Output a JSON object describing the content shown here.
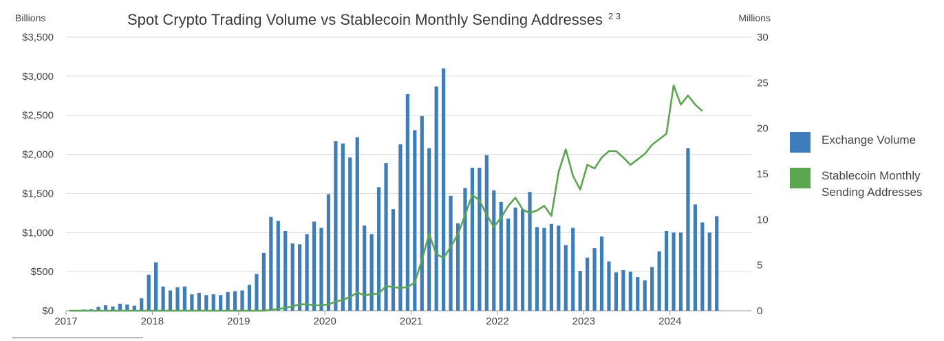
{
  "chart_data": {
    "type": "bar+line",
    "title": "Spot Crypto Trading Volume vs Stablecoin Monthly Sending Addresses",
    "title_superscript": "2 3",
    "left_axis_unit": "Billions",
    "right_axis_unit": "Millions",
    "y_left": {
      "min": 0,
      "max": 3500,
      "ticks": [
        "$0",
        "$500",
        "$1,000",
        "$1,500",
        "$2,000",
        "$2,500",
        "$3,000",
        "$3,500"
      ]
    },
    "y_right": {
      "min": 0,
      "max": 30,
      "ticks": [
        "0",
        "5",
        "10",
        "15",
        "20",
        "25",
        "30"
      ]
    },
    "x_ticks": [
      "2017",
      "2018",
      "2019",
      "2020",
      "2021",
      "2022",
      "2023",
      "2024"
    ],
    "x_start": "2017-01",
    "series": [
      {
        "name": "Exchange Volume",
        "kind": "bar",
        "axis": "left",
        "color": "#3d7dbb",
        "values": [
          5,
          8,
          15,
          20,
          50,
          70,
          55,
          90,
          80,
          65,
          160,
          460,
          620,
          310,
          260,
          300,
          310,
          210,
          230,
          200,
          210,
          200,
          240,
          250,
          260,
          330,
          470,
          740,
          1200,
          1150,
          1020,
          860,
          850,
          980,
          1140,
          1060,
          1490,
          2170,
          2140,
          1960,
          2220,
          1090,
          980,
          1580,
          1890,
          1300,
          2130,
          2770,
          2310,
          2490,
          2080,
          2870,
          3100,
          1470,
          1120,
          1570,
          1830,
          1830,
          1990,
          1540,
          1390,
          1180,
          1320,
          1300,
          1520,
          1070,
          1060,
          1110,
          1090,
          840,
          1060,
          510,
          680,
          800,
          950,
          630,
          490,
          520,
          500,
          430,
          390,
          560,
          760,
          1020,
          1000,
          1000,
          2080,
          1360,
          1130,
          1000,
          1210
        ]
      },
      {
        "name": "Stablecoin Monthly Sending Addresses",
        "kind": "line",
        "axis": "right",
        "color": "#5aa64e",
        "values": [
          0,
          0,
          0,
          0,
          0,
          0,
          0,
          0,
          0,
          0,
          0,
          0,
          0,
          0,
          0,
          0,
          0,
          0,
          0,
          0,
          0,
          0,
          0,
          0,
          0,
          0,
          0,
          0,
          0.1,
          0.2,
          0.3,
          0.5,
          0.7,
          0.7,
          0.6,
          0.6,
          0.7,
          1.0,
          1.2,
          1.5,
          2.0,
          1.7,
          1.8,
          1.9,
          2.7,
          2.6,
          2.5,
          2.6,
          3.1,
          5.6,
          8.4,
          6.2,
          5.8,
          7.0,
          8.4,
          10.5,
          12.7,
          12.1,
          10.5,
          9.2,
          10.2,
          11.5,
          12.4,
          11.1,
          10.7,
          11.0,
          11.5,
          10.4,
          15.2,
          17.7,
          14.8,
          13.3,
          16.0,
          15.6,
          16.8,
          17.5,
          17.5,
          16.8,
          16.0,
          16.6,
          17.2,
          18.2,
          18.8,
          19.4,
          24.7,
          22.6,
          23.6,
          22.6,
          21.9
        ]
      }
    ],
    "legend_position": "right"
  }
}
